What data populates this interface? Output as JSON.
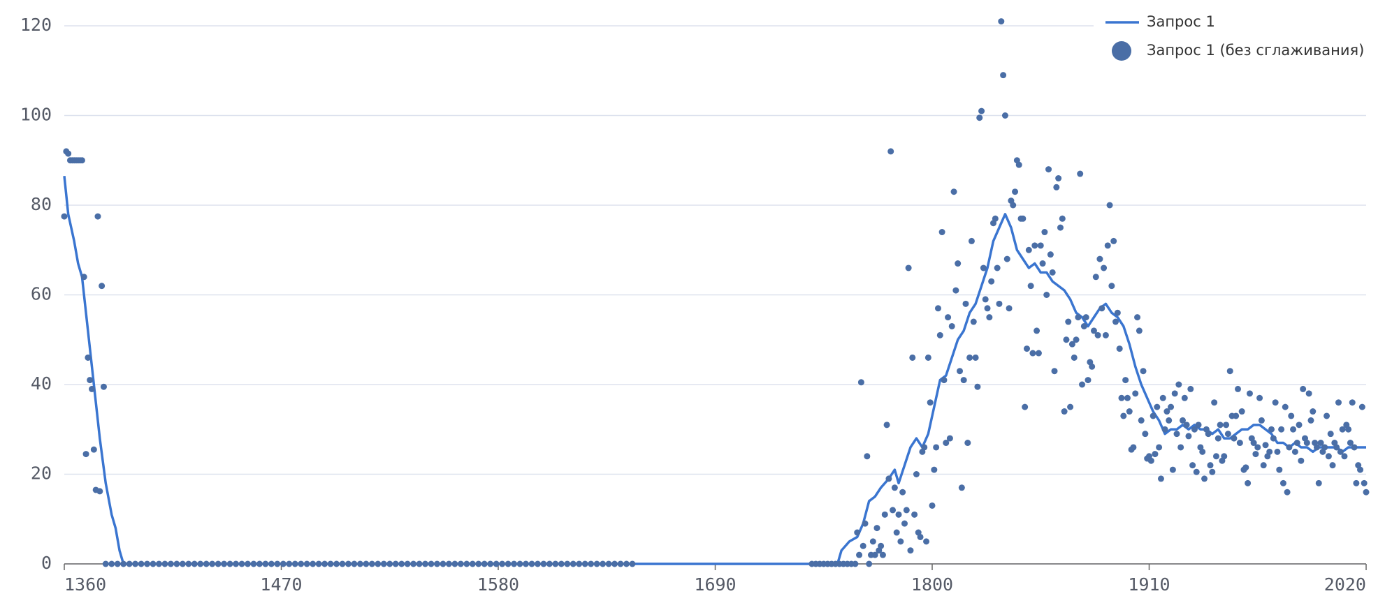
{
  "chart_data": {
    "type": "line",
    "xlim": [
      1360,
      2020
    ],
    "xticks": [
      1360,
      1470,
      1580,
      1690,
      1800,
      1910,
      2020
    ],
    "ylim": [
      0,
      120
    ],
    "yticks": [
      0,
      20,
      40,
      60,
      80,
      100,
      120
    ],
    "grid": true,
    "legend": "top-right",
    "series": [
      {
        "name": "Запрос 1",
        "type": "line",
        "color": "#3a75d0",
        "x": [
          1360,
          1362,
          1365,
          1367,
          1369,
          1372,
          1375,
          1378,
          1381,
          1384,
          1386,
          1388,
          1390,
          1752,
          1754,
          1758,
          1762,
          1765,
          1768,
          1771,
          1774,
          1778,
          1781,
          1783,
          1786,
          1789,
          1792,
          1795,
          1798,
          1801,
          1804,
          1807,
          1810,
          1813,
          1816,
          1819,
          1822,
          1825,
          1828,
          1831,
          1834,
          1837,
          1840,
          1843,
          1846,
          1849,
          1852,
          1855,
          1858,
          1861,
          1864,
          1867,
          1870,
          1873,
          1876,
          1879,
          1882,
          1885,
          1888,
          1891,
          1894,
          1897,
          1900,
          1903,
          1906,
          1909,
          1912,
          1915,
          1918,
          1921,
          1924,
          1927,
          1930,
          1933,
          1936,
          1939,
          1942,
          1945,
          1948,
          1951,
          1954,
          1957,
          1960,
          1963,
          1966,
          1969,
          1972,
          1975,
          1978,
          1981,
          1984,
          1987,
          1990,
          1993,
          1996,
          1999,
          2002,
          2005,
          2008,
          2011,
          2014,
          2017,
          2020
        ],
        "values": [
          86.5,
          78,
          72,
          67,
          64,
          52,
          40,
          28,
          18,
          11,
          8,
          3,
          0,
          0,
          3,
          5,
          6,
          9,
          14,
          15,
          17,
          19,
          21,
          18,
          22,
          26,
          28,
          26,
          29,
          35,
          41,
          42,
          46,
          50,
          52,
          56,
          58,
          62,
          66,
          72,
          75,
          78,
          75,
          70,
          68,
          66,
          67,
          65,
          65,
          63,
          62,
          61,
          59,
          56,
          55,
          53,
          55,
          57,
          58,
          56,
          55,
          53,
          49,
          44,
          40,
          37,
          34,
          32,
          29,
          30,
          30,
          31,
          30,
          31,
          30,
          30,
          29,
          30,
          28,
          28,
          29,
          30,
          30,
          31,
          31,
          30,
          29,
          27,
          27,
          26,
          27,
          26,
          26,
          25,
          26,
          26,
          26,
          26,
          25,
          26,
          26,
          26,
          26
        ]
      },
      {
        "name": "Запрос 1 (без сглаживания)",
        "type": "scatter",
        "color": "#4a6ea6",
        "x": [
          1360,
          1361,
          1362,
          1363,
          1364,
          1365,
          1366,
          1367,
          1368,
          1369,
          1370,
          1371,
          1372,
          1373,
          1374,
          1375,
          1376,
          1377,
          1378,
          1379,
          1380,
          1381,
          1384,
          1387,
          1390,
          1393,
          1396,
          1399,
          1402,
          1405,
          1408,
          1411,
          1414,
          1417,
          1420,
          1423,
          1426,
          1429,
          1432,
          1435,
          1438,
          1441,
          1444,
          1447,
          1450,
          1453,
          1456,
          1459,
          1462,
          1465,
          1468,
          1471,
          1474,
          1477,
          1480,
          1483,
          1486,
          1489,
          1492,
          1495,
          1498,
          1501,
          1504,
          1507,
          1510,
          1513,
          1516,
          1519,
          1522,
          1525,
          1528,
          1531,
          1534,
          1537,
          1540,
          1543,
          1546,
          1549,
          1552,
          1555,
          1558,
          1561,
          1564,
          1567,
          1570,
          1573,
          1576,
          1579,
          1582,
          1585,
          1588,
          1591,
          1594,
          1597,
          1600,
          1603,
          1606,
          1609,
          1612,
          1615,
          1618,
          1621,
          1624,
          1627,
          1630,
          1633,
          1636,
          1639,
          1642,
          1645,
          1648,
          1739,
          1741,
          1743,
          1745,
          1747,
          1749,
          1751,
          1753,
          1755,
          1757,
          1759,
          1761,
          1762,
          1763,
          1764,
          1765,
          1766,
          1767,
          1768,
          1769,
          1770,
          1771,
          1772,
          1773,
          1774,
          1775,
          1776,
          1777,
          1778,
          1779,
          1780,
          1781,
          1782,
          1783,
          1784,
          1785,
          1786,
          1787,
          1788,
          1789,
          1790,
          1791,
          1792,
          1793,
          1794,
          1795,
          1796,
          1797,
          1798,
          1799,
          1800,
          1801,
          1802,
          1803,
          1804,
          1805,
          1806,
          1807,
          1808,
          1809,
          1810,
          1811,
          1812,
          1813,
          1814,
          1815,
          1816,
          1817,
          1818,
          1819,
          1820,
          1821,
          1822,
          1823,
          1824,
          1825,
          1826,
          1827,
          1828,
          1829,
          1830,
          1831,
          1832,
          1833,
          1834,
          1835,
          1836,
          1837,
          1838,
          1839,
          1840,
          1841,
          1842,
          1843,
          1844,
          1845,
          1846,
          1847,
          1848,
          1849,
          1850,
          1851,
          1852,
          1853,
          1854,
          1855,
          1856,
          1857,
          1858,
          1859,
          1860,
          1861,
          1862,
          1863,
          1864,
          1865,
          1866,
          1867,
          1868,
          1869,
          1870,
          1871,
          1872,
          1873,
          1874,
          1875,
          1876,
          1877,
          1878,
          1879,
          1880,
          1881,
          1882,
          1883,
          1884,
          1885,
          1886,
          1887,
          1888,
          1889,
          1890,
          1891,
          1892,
          1893,
          1894,
          1895,
          1896,
          1897,
          1898,
          1899,
          1900,
          1901,
          1902,
          1903,
          1904,
          1905,
          1906,
          1907,
          1908,
          1909,
          1910,
          1911,
          1912,
          1913,
          1914,
          1915,
          1916,
          1917,
          1918,
          1919,
          1920,
          1921,
          1922,
          1923,
          1924,
          1925,
          1926,
          1927,
          1928,
          1929,
          1930,
          1931,
          1932,
          1933,
          1934,
          1935,
          1936,
          1937,
          1938,
          1939,
          1940,
          1941,
          1942,
          1943,
          1944,
          1945,
          1946,
          1947,
          1948,
          1949,
          1950,
          1951,
          1952,
          1953,
          1954,
          1955,
          1956,
          1957,
          1958,
          1959,
          1960,
          1961,
          1962,
          1963,
          1964,
          1965,
          1966,
          1967,
          1968,
          1969,
          1970,
          1971,
          1972,
          1973,
          1974,
          1975,
          1976,
          1977,
          1978,
          1979,
          1980,
          1981,
          1982,
          1983,
          1984,
          1985,
          1986,
          1987,
          1988,
          1989,
          1990,
          1991,
          1992,
          1993,
          1994,
          1995,
          1996,
          1997,
          1998,
          1999,
          2000,
          2001,
          2002,
          2003,
          2004,
          2005,
          2006,
          2007,
          2008,
          2009,
          2010,
          2011,
          2012,
          2013,
          2014,
          2015,
          2016,
          2017,
          2018,
          2019,
          2020
        ],
        "values": [
          77.5,
          92,
          91.5,
          90,
          90,
          90,
          90,
          90,
          90,
          90,
          64,
          24.5,
          46,
          41,
          39,
          25.5,
          16.5,
          77.5,
          16.2,
          62,
          39.5,
          0,
          0,
          0,
          0,
          0,
          0,
          0,
          0,
          0,
          0,
          0,
          0,
          0,
          0,
          0,
          0,
          0,
          0,
          0,
          0,
          0,
          0,
          0,
          0,
          0,
          0,
          0,
          0,
          0,
          0,
          0,
          0,
          0,
          0,
          0,
          0,
          0,
          0,
          0,
          0,
          0,
          0,
          0,
          0,
          0,
          0,
          0,
          0,
          0,
          0,
          0,
          0,
          0,
          0,
          0,
          0,
          0,
          0,
          0,
          0,
          0,
          0,
          0,
          0,
          0,
          0,
          0,
          0,
          0,
          0,
          0,
          0,
          0,
          0,
          0,
          0,
          0,
          0,
          0,
          0,
          0,
          0,
          0,
          0,
          0,
          0,
          0,
          0,
          0,
          0,
          0,
          0,
          0,
          0,
          0,
          0,
          0,
          0,
          0,
          0,
          0,
          0,
          7,
          2,
          40.5,
          4,
          9,
          24,
          0,
          2,
          5,
          2,
          8,
          3,
          4,
          2,
          11,
          31,
          19,
          92,
          12,
          17,
          7,
          11,
          5,
          16,
          9,
          12,
          66,
          3,
          46,
          11,
          20,
          7,
          6,
          25,
          26,
          5,
          46,
          36,
          13,
          21,
          26,
          57,
          51,
          74,
          41,
          27,
          55,
          28,
          53,
          83,
          61,
          67,
          43,
          17,
          41,
          58,
          27,
          46,
          72,
          54,
          46,
          39.5,
          99.5,
          101,
          66,
          59,
          57,
          55,
          63,
          76,
          77,
          66,
          58,
          121,
          109,
          100,
          68,
          57,
          81,
          80,
          83,
          90,
          89,
          77,
          77,
          35,
          48,
          70,
          62,
          47,
          71,
          52,
          47,
          71,
          67,
          74,
          60,
          88,
          69,
          65,
          43,
          84,
          86,
          75,
          77,
          34,
          50,
          54,
          35,
          49,
          46,
          50,
          55,
          87,
          40,
          53,
          55,
          41,
          45,
          44,
          52,
          64,
          51,
          68,
          57,
          66,
          51,
          71,
          80,
          62,
          72,
          54,
          56,
          48,
          37,
          33,
          41,
          37,
          34,
          25.5,
          26,
          38,
          55,
          52,
          32,
          43,
          29,
          23.5,
          24,
          23,
          33,
          24.5,
          35,
          26,
          19,
          37,
          30,
          34,
          32,
          35,
          21,
          38,
          29,
          40,
          26,
          32,
          37,
          31,
          28.5,
          39,
          22,
          30,
          20.5,
          31,
          26,
          25,
          19,
          30,
          29,
          22,
          20.5,
          36,
          24,
          28,
          31,
          23,
          24,
          31,
          29,
          43,
          33,
          28,
          33,
          39,
          27,
          34,
          21,
          21.5,
          18,
          38,
          28,
          27,
          24.5,
          26,
          37,
          32,
          22,
          26.5,
          24,
          25,
          30,
          28,
          36,
          25,
          21,
          30,
          18,
          35,
          16,
          26,
          33,
          30,
          25,
          27,
          31,
          23,
          39,
          28,
          27,
          38,
          32,
          34,
          27,
          26,
          18,
          27,
          25,
          26,
          33,
          24,
          29,
          22,
          27,
          26,
          36,
          25,
          30,
          24,
          31,
          30,
          27,
          36,
          26,
          18,
          22,
          21,
          35,
          18,
          16
        ]
      }
    ]
  }
}
